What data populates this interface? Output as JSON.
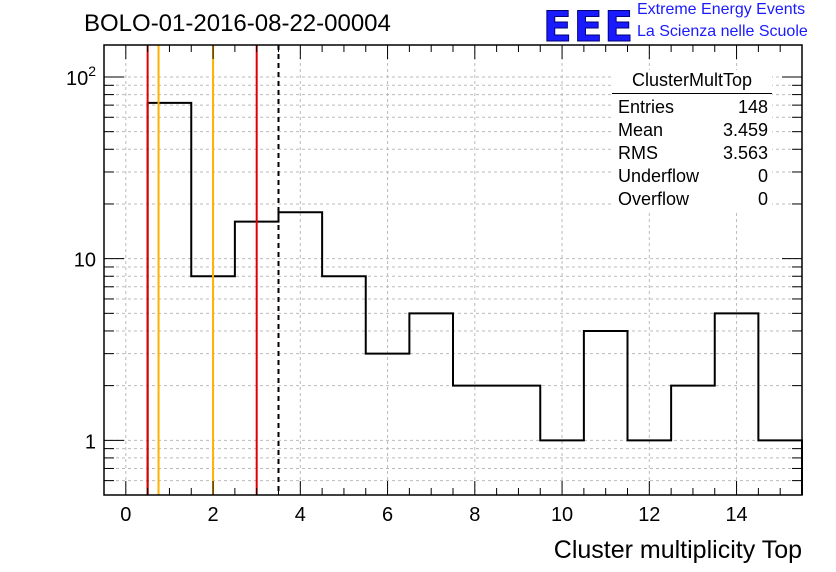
{
  "title": "BOLO-01-2016-08-22-00004",
  "logo": {
    "letters": "EEE",
    "line1": "Extreme Energy Events",
    "line2": "La Scienza nelle Scuole",
    "color": "#1a1aff"
  },
  "stats_box": {
    "name": "ClusterMultTop",
    "rows": [
      {
        "label": "Entries",
        "value": "148"
      },
      {
        "label": "Mean",
        "value": "3.459"
      },
      {
        "label": "RMS",
        "value": "3.563"
      },
      {
        "label": "Underflow",
        "value": "0"
      },
      {
        "label": "Overflow",
        "value": "0"
      }
    ]
  },
  "chart_data": {
    "type": "histogram",
    "xlabel": "Cluster multiplicity Top",
    "ylabel": "",
    "xlim": [
      -0.5,
      15.5
    ],
    "ylim": [
      0.5,
      150
    ],
    "yscale": "log",
    "grid": true,
    "xticks": [
      0,
      2,
      4,
      6,
      8,
      10,
      12,
      14
    ],
    "yticks": [
      {
        "value": 1,
        "label": "1"
      },
      {
        "value": 10,
        "label": "10"
      },
      {
        "value": 100,
        "label": "10",
        "sup": "2"
      }
    ],
    "bins": [
      {
        "x": 1,
        "count": 72
      },
      {
        "x": 2,
        "count": 8
      },
      {
        "x": 3,
        "count": 16
      },
      {
        "x": 4,
        "count": 18
      },
      {
        "x": 5,
        "count": 8
      },
      {
        "x": 6,
        "count": 3
      },
      {
        "x": 7,
        "count": 5
      },
      {
        "x": 8,
        "count": 2
      },
      {
        "x": 9,
        "count": 2
      },
      {
        "x": 10,
        "count": 1
      },
      {
        "x": 11,
        "count": 4
      },
      {
        "x": 12,
        "count": 1
      },
      {
        "x": 13,
        "count": 2
      },
      {
        "x": 14,
        "count": 5
      },
      {
        "x": 15,
        "count": 1
      }
    ],
    "vlines": [
      {
        "x": 0.5,
        "color": "#e00000",
        "style": "solid"
      },
      {
        "x": 0.75,
        "color": "#ffb000",
        "style": "solid"
      },
      {
        "x": 2.0,
        "color": "#ffb000",
        "style": "solid"
      },
      {
        "x": 3.0,
        "color": "#e00000",
        "style": "solid"
      },
      {
        "x": 3.5,
        "color": "#000000",
        "style": "dashed"
      }
    ]
  }
}
